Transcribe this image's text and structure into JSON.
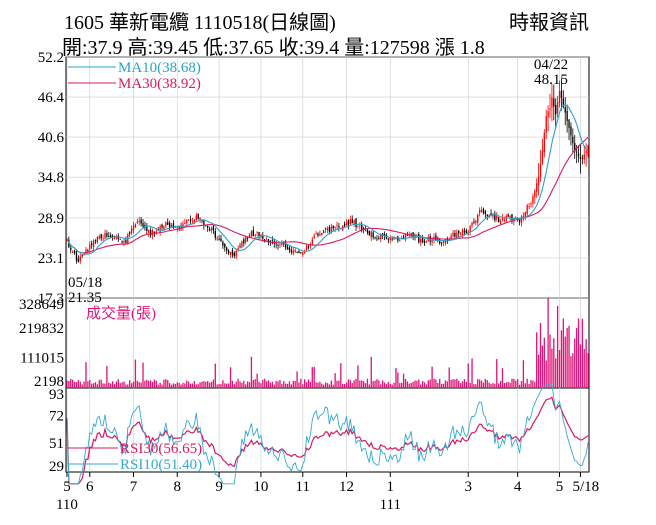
{
  "header": {
    "title": "1605  華新電纜 1110518(日線圖)",
    "source": "時報資訊",
    "ohlc": "開:37.9 高:39.45 低:37.65 收:39.4 量:127598 漲 1.8"
  },
  "colors": {
    "up": "#ff0000",
    "down": "#000000",
    "ma10": "#2fa0c8",
    "ma30": "#d81b60",
    "volume": "#e0157a",
    "rsi30": "#d81b60",
    "rsi10": "#33aad4",
    "grid": "#cccccc"
  },
  "chart_data": [
    {
      "type": "candlestick",
      "panel": "price",
      "ylim": [
        17.3,
        52.2
      ],
      "y_ticks": [
        "52.2",
        "46.4",
        "40.6",
        "34.8",
        "28.9",
        "23.1",
        "17.3"
      ],
      "legend": [
        {
          "key": "ma10",
          "label": "MA10(38.68)"
        },
        {
          "key": "ma30",
          "label": "MA30(38.92)"
        }
      ],
      "annotations": [
        {
          "date": "04/22",
          "value": "48.15",
          "kind": "high"
        },
        {
          "date": "05/18",
          "value": "21.35",
          "kind": "low"
        }
      ],
      "anchors": [
        [
          0,
          25.5
        ],
        [
          6,
          22.5
        ],
        [
          14,
          25.8
        ],
        [
          22,
          26.5
        ],
        [
          30,
          25.3
        ],
        [
          38,
          28.8
        ],
        [
          44,
          26.5
        ],
        [
          52,
          28.0
        ],
        [
          60,
          27.6
        ],
        [
          68,
          29.2
        ],
        [
          76,
          27.0
        ],
        [
          82,
          24.8
        ],
        [
          88,
          23.6
        ],
        [
          94,
          26.0
        ],
        [
          100,
          27.0
        ],
        [
          106,
          25.3
        ],
        [
          112,
          25.2
        ],
        [
          118,
          24.3
        ],
        [
          124,
          23.6
        ],
        [
          130,
          26.2
        ],
        [
          138,
          27.3
        ],
        [
          144,
          27.6
        ],
        [
          150,
          28.4
        ],
        [
          156,
          27.2
        ],
        [
          162,
          26.3
        ],
        [
          168,
          26.0
        ],
        [
          174,
          25.6
        ],
        [
          180,
          26.5
        ],
        [
          186,
          25.6
        ],
        [
          192,
          25.8
        ],
        [
          198,
          25.4
        ],
        [
          204,
          26.6
        ],
        [
          210,
          26.9
        ],
        [
          214,
          28.3
        ],
        [
          218,
          30.2
        ],
        [
          222,
          29.0
        ],
        [
          228,
          28.7
        ],
        [
          234,
          29.0
        ],
        [
          238,
          28.4
        ],
        [
          242,
          30.3
        ],
        [
          246,
          32.5
        ],
        [
          249,
          36.5
        ],
        [
          252,
          43.6
        ],
        [
          255,
          46.0
        ],
        [
          257,
          43.8
        ],
        [
          259,
          47.2
        ],
        [
          262,
          44.5
        ],
        [
          265,
          41.0
        ],
        [
          267,
          38.8
        ],
        [
          270,
          37.6
        ],
        [
          272,
          38.2
        ],
        [
          274,
          39.4
        ]
      ]
    },
    {
      "type": "bar",
      "panel": "volume",
      "label": "成交量(張)",
      "ylim": [
        0,
        328649
      ],
      "y_ticks": [
        "328649",
        "219832",
        "111015",
        "2198"
      ],
      "latest": 127598
    },
    {
      "type": "line",
      "panel": "rsi",
      "ylim": [
        29,
        93
      ],
      "y_ticks": [
        "93",
        "72",
        "51",
        "29"
      ],
      "series": [
        {
          "name": "RSI30",
          "key": "rsi30",
          "label": "RSI30(56.65)",
          "last": 56.65
        },
        {
          "name": "RSI10",
          "key": "rsi10",
          "label": "RSI10(51.40)",
          "last": 51.4
        }
      ]
    }
  ],
  "x_axis": {
    "months": [
      {
        "label": "5",
        "index": 0
      },
      {
        "label": "6",
        "index": 12
      },
      {
        "label": "7",
        "index": 35
      },
      {
        "label": "8",
        "index": 58
      },
      {
        "label": "9",
        "index": 80
      },
      {
        "label": "10",
        "index": 102
      },
      {
        "label": "11",
        "index": 124
      },
      {
        "label": "12",
        "index": 147
      },
      {
        "label": "1",
        "index": 170
      },
      {
        "label": "3",
        "index": 211
      },
      {
        "label": "4",
        "index": 237
      },
      {
        "label": "5",
        "index": 259
      },
      {
        "label": "5/18",
        "index": 270
      }
    ],
    "years": [
      {
        "label": "110",
        "index": 0
      },
      {
        "label": "111",
        "index": 170
      }
    ]
  }
}
